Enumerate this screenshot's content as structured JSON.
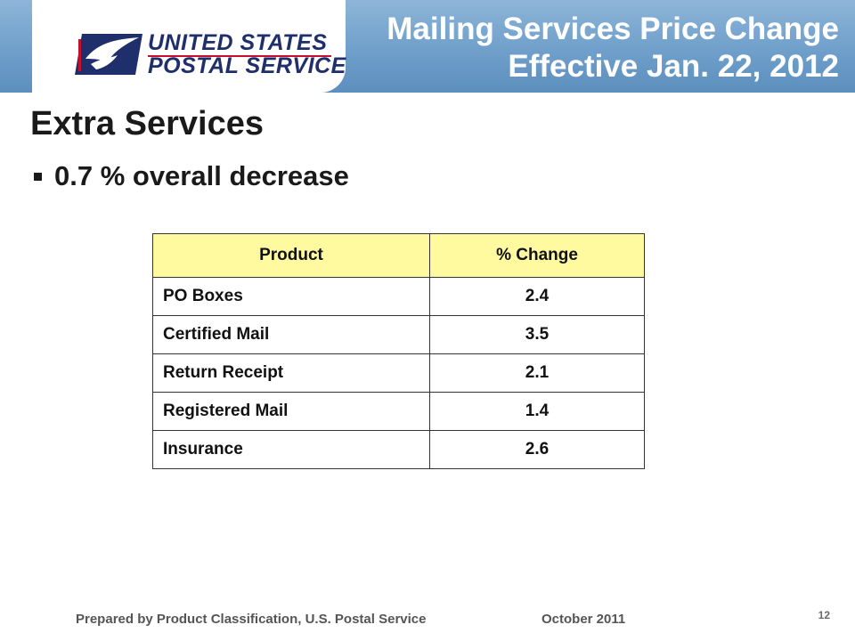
{
  "header": {
    "logo_line1": "UNITED STATES",
    "logo_line2": "POSTAL SERVICE",
    "title_line1": "Mailing Services Price Change",
    "title_line2": "Effective Jan. 22, 2012",
    "colors": {
      "band": "#6f9fca",
      "logo_navy": "#1f2f6b",
      "logo_red": "#c8102e"
    }
  },
  "slide": {
    "title": "Extra Services",
    "bullet": "0.7 % overall decrease"
  },
  "table": {
    "headers": [
      "Product",
      "% Change"
    ],
    "header_color": "#fff99f",
    "rows": [
      [
        "PO Boxes",
        "2.4"
      ],
      [
        "Certified Mail",
        "3.5"
      ],
      [
        "Return Receipt",
        "2.1"
      ],
      [
        "Registered Mail",
        "1.4"
      ],
      [
        "Insurance",
        "2.6"
      ]
    ]
  },
  "footer": {
    "prepared_by": "Prepared by Product Classification, U.S. Postal Service",
    "date": "October 2011",
    "page": "12"
  }
}
